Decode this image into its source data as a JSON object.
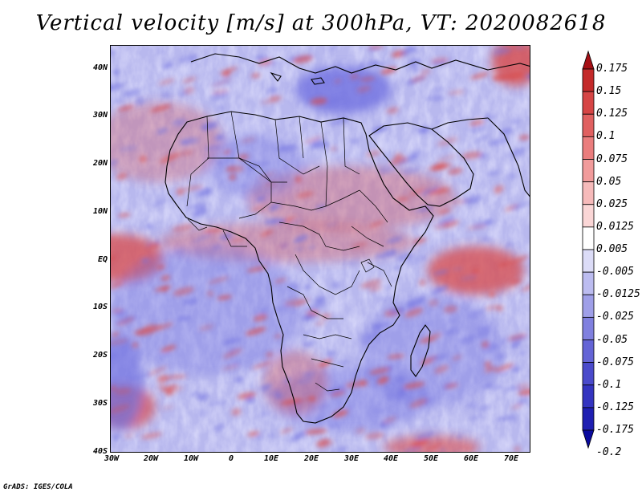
{
  "title": "Vertical velocity [m/s] at 300hPa, VT: 2020082618",
  "footer": "GrADS: IGES/COLA",
  "lat_labels": [
    "40N",
    "30N",
    "20N",
    "10N",
    "EQ",
    "10S",
    "20S",
    "30S",
    "40S"
  ],
  "lon_labels": [
    "30W",
    "20W",
    "10W",
    "0",
    "10E",
    "20E",
    "30E",
    "40E",
    "50E",
    "60E",
    "70E"
  ],
  "colorbar": {
    "labels": [
      "0.175",
      "0.15",
      "0.125",
      "0.1",
      "0.075",
      "0.05",
      "0.025",
      "0.0125",
      "0.005",
      "-0.005",
      "-0.0125",
      "-0.025",
      "-0.05",
      "-0.075",
      "-0.1",
      "-0.125",
      "-0.175",
      "-0.2"
    ],
    "colors": [
      "#a50f15",
      "#c42a2a",
      "#d64545",
      "#e06060",
      "#ea7d7d",
      "#f19b9b",
      "#f6baba",
      "#fad6d6",
      "#ffffff",
      "#dcdcf7",
      "#bcbcf0",
      "#9f9fe8",
      "#8080df",
      "#6464d6",
      "#4a4acb",
      "#3434c0",
      "#1f1fb2",
      "#0a0a9e"
    ]
  },
  "colors": {
    "rising_air": "#d84a4a",
    "sinking_air": "#7070e0",
    "background_field": "#c8c8f2",
    "coastline": "#000000"
  }
}
